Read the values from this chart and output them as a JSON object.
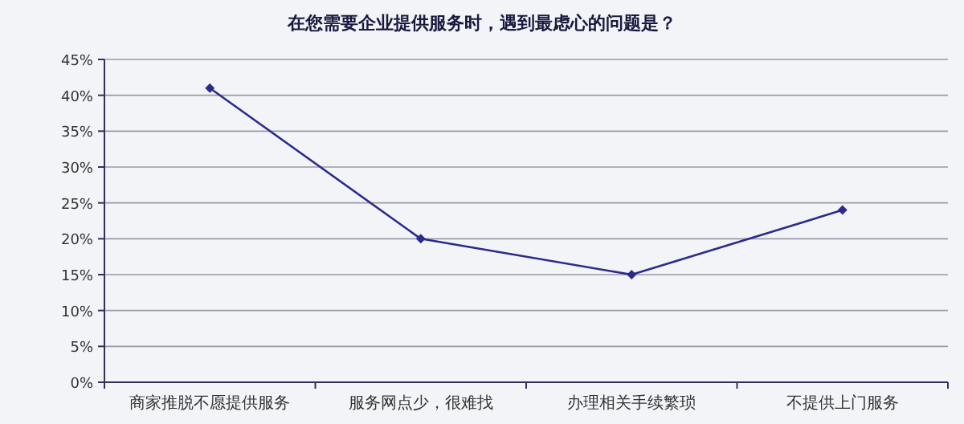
{
  "chart_data": {
    "type": "line",
    "title": "在您需要企业提供服务时，遇到最虑心的问题是？",
    "categories": [
      "商家推脱不愿提供服务",
      "服务网点少，很难找",
      "办理相关手续繁琐",
      "不提供上门服务"
    ],
    "series": [
      {
        "color": "#2b2b8c",
        "values": [
          41,
          20,
          15,
          24
        ]
      }
    ],
    "ylim": [
      0,
      45
    ],
    "yticks": [
      {
        "value": 0,
        "label": "0%"
      },
      {
        "value": 5,
        "label": "5%"
      },
      {
        "value": 10,
        "label": "10%"
      },
      {
        "value": 15,
        "label": "15%"
      },
      {
        "value": 20,
        "label": "20%"
      },
      {
        "value": 25,
        "label": "25%"
      },
      {
        "value": 30,
        "label": "30%"
      },
      {
        "value": 35,
        "label": "35%"
      },
      {
        "value": 40,
        "label": "40%"
      },
      {
        "value": 45,
        "label": "45%"
      }
    ],
    "grid": "y",
    "marker": "diamond",
    "line_style": "solid"
  }
}
